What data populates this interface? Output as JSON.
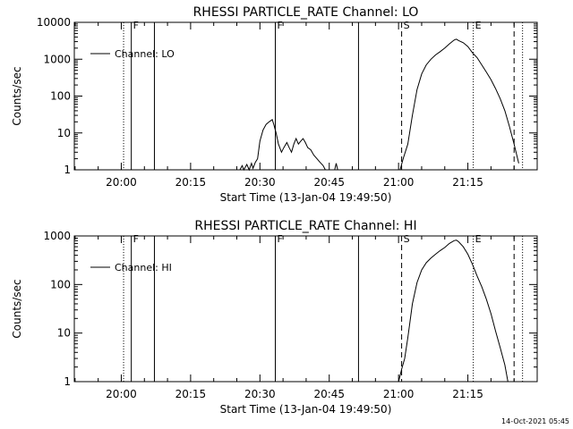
{
  "footer": {
    "timestamp": "14-Oct-2021 05:45"
  },
  "chart_data": [
    {
      "type": "line",
      "title": "RHESSI PARTICLE_RATE Channel: LO",
      "xlabel": "Start Time (13-Jan-04 19:49:50)",
      "ylabel": "Counts/sec",
      "xlim": [
        "19:49:50",
        "21:30:00"
      ],
      "ylim": [
        1,
        10000
      ],
      "yscale": "log",
      "yticks": [
        {
          "value": 1,
          "label": "1"
        },
        {
          "value": 10,
          "label": "10"
        },
        {
          "value": 100,
          "label": "100"
        },
        {
          "value": 1000,
          "label": "1000"
        },
        {
          "value": 10000,
          "label": "10000"
        }
      ],
      "xticks": [
        {
          "time": "20:00",
          "label": "20:00"
        },
        {
          "time": "20:15",
          "label": "20:15"
        },
        {
          "time": "20:30",
          "label": "20:30"
        },
        {
          "time": "20:45",
          "label": "20:45"
        },
        {
          "time": "21:00",
          "label": "21:00"
        },
        {
          "time": "21:15",
          "label": "21:15"
        }
      ],
      "legend": {
        "position": "top-left",
        "entries": [
          "Channel: LO"
        ]
      },
      "markers": [
        {
          "time": "20:00:30",
          "style": "dotted",
          "label": ""
        },
        {
          "time": "20:02:10",
          "style": "solid",
          "label": "F"
        },
        {
          "time": "20:07:10",
          "style": "solid",
          "label": ""
        },
        {
          "time": "20:33:20",
          "style": "solid",
          "label": "F"
        },
        {
          "time": "20:51:20",
          "style": "solid",
          "label": ""
        },
        {
          "time": "21:00:40",
          "style": "dashed",
          "label": "S"
        },
        {
          "time": "21:16:10",
          "style": "dotted",
          "label": "E"
        },
        {
          "time": "21:25:00",
          "style": "dashed",
          "label": ""
        },
        {
          "time": "21:26:50",
          "style": "dotted",
          "label": ""
        }
      ],
      "series": [
        {
          "name": "Channel: LO",
          "segments": [
            [
              [
                "20:25:40",
                1
              ],
              [
                "20:26:10",
                1.3
              ],
              [
                "20:26:30",
                1
              ],
              [
                "20:27:10",
                1.4
              ],
              [
                "20:27:40",
                1
              ],
              [
                "20:28:10",
                1.5
              ],
              [
                "20:28:30",
                1.1
              ],
              [
                "20:29:00",
                1.6
              ],
              [
                "20:29:30",
                2
              ],
              [
                "20:30:00",
                6
              ],
              [
                "20:30:40",
                12
              ],
              [
                "20:31:20",
                17
              ],
              [
                "20:32:00",
                20
              ],
              [
                "20:32:40",
                23
              ],
              [
                "20:33:00",
                17
              ],
              [
                "20:33:30",
                10
              ],
              [
                "20:34:00",
                5
              ],
              [
                "20:34:40",
                3
              ],
              [
                "20:35:10",
                4
              ],
              [
                "20:35:50",
                5.5
              ],
              [
                "20:36:20",
                4
              ],
              [
                "20:36:50",
                3
              ],
              [
                "20:37:20",
                5
              ],
              [
                "20:37:50",
                7
              ],
              [
                "20:38:20",
                5
              ],
              [
                "20:38:50",
                6
              ],
              [
                "20:39:20",
                7
              ],
              [
                "20:39:50",
                5.5
              ],
              [
                "20:40:20",
                4
              ],
              [
                "20:41:00",
                3.5
              ],
              [
                "20:41:40",
                2.5
              ],
              [
                "20:42:20",
                2
              ],
              [
                "20:43:00",
                1.6
              ],
              [
                "20:43:40",
                1.3
              ],
              [
                "20:44:10",
                1
              ]
            ],
            [
              [
                "20:46:10",
                1
              ],
              [
                "20:46:30",
                1.5
              ],
              [
                "20:46:50",
                1
              ]
            ],
            [
              [
                "21:00:20",
                1
              ],
              [
                "21:01:00",
                2
              ],
              [
                "21:02:00",
                5
              ],
              [
                "21:03:00",
                30
              ],
              [
                "21:04:00",
                150
              ],
              [
                "21:05:00",
                400
              ],
              [
                "21:06:00",
                700
              ],
              [
                "21:07:00",
                1000
              ],
              [
                "21:08:00",
                1300
              ],
              [
                "21:09:00",
                1600
              ],
              [
                "21:10:00",
                2000
              ],
              [
                "21:11:00",
                2600
              ],
              [
                "21:12:00",
                3300
              ],
              [
                "21:12:30",
                3500
              ],
              [
                "21:13:00",
                3200
              ],
              [
                "21:14:00",
                2800
              ],
              [
                "21:15:00",
                2200
              ],
              [
                "21:16:00",
                1500
              ],
              [
                "21:17:00",
                1100
              ],
              [
                "21:18:00",
                700
              ],
              [
                "21:19:00",
                450
              ],
              [
                "21:20:00",
                280
              ],
              [
                "21:21:00",
                160
              ],
              [
                "21:22:00",
                85
              ],
              [
                "21:23:00",
                40
              ],
              [
                "21:24:00",
                15
              ],
              [
                "21:25:00",
                5
              ],
              [
                "21:26:00",
                1.5
              ]
            ]
          ]
        }
      ]
    },
    {
      "type": "line",
      "title": "RHESSI PARTICLE_RATE Channel: HI",
      "xlabel": "Start Time (13-Jan-04 19:49:50)",
      "ylabel": "Counts/sec",
      "xlim": [
        "19:49:50",
        "21:30:00"
      ],
      "ylim": [
        1,
        1000
      ],
      "yscale": "log",
      "yticks": [
        {
          "value": 1,
          "label": "1"
        },
        {
          "value": 10,
          "label": "10"
        },
        {
          "value": 100,
          "label": "100"
        },
        {
          "value": 1000,
          "label": "1000"
        }
      ],
      "xticks": [
        {
          "time": "20:00",
          "label": "20:00"
        },
        {
          "time": "20:15",
          "label": "20:15"
        },
        {
          "time": "20:30",
          "label": "20:30"
        },
        {
          "time": "20:45",
          "label": "20:45"
        },
        {
          "time": "21:00",
          "label": "21:00"
        },
        {
          "time": "21:15",
          "label": "21:15"
        }
      ],
      "legend": {
        "position": "top-left",
        "entries": [
          "Channel: HI"
        ]
      },
      "markers": [
        {
          "time": "20:00:30",
          "style": "dotted",
          "label": ""
        },
        {
          "time": "20:02:10",
          "style": "solid",
          "label": "F"
        },
        {
          "time": "20:07:10",
          "style": "solid",
          "label": ""
        },
        {
          "time": "20:33:20",
          "style": "solid",
          "label": "F"
        },
        {
          "time": "20:51:20",
          "style": "solid",
          "label": ""
        },
        {
          "time": "21:00:40",
          "style": "dashed",
          "label": "S"
        },
        {
          "time": "21:16:10",
          "style": "dotted",
          "label": "E"
        },
        {
          "time": "21:25:00",
          "style": "dashed",
          "label": ""
        },
        {
          "time": "21:26:50",
          "style": "dotted",
          "label": ""
        }
      ],
      "series": [
        {
          "name": "Channel: HI",
          "segments": [
            [
              [
                "21:00:00",
                1
              ],
              [
                "21:00:40",
                1.8
              ],
              [
                "21:01:20",
                3
              ],
              [
                "21:02:00",
                8
              ],
              [
                "21:03:00",
                40
              ],
              [
                "21:04:00",
                110
              ],
              [
                "21:05:00",
                200
              ],
              [
                "21:06:00",
                280
              ],
              [
                "21:07:00",
                350
              ],
              [
                "21:08:00",
                420
              ],
              [
                "21:09:00",
                500
              ],
              [
                "21:10:00",
                580
              ],
              [
                "21:11:00",
                700
              ],
              [
                "21:12:00",
                800
              ],
              [
                "21:12:30",
                820
              ],
              [
                "21:13:00",
                760
              ],
              [
                "21:14:00",
                600
              ],
              [
                "21:15:00",
                420
              ],
              [
                "21:16:00",
                260
              ],
              [
                "21:17:00",
                150
              ],
              [
                "21:18:00",
                90
              ],
              [
                "21:19:00",
                50
              ],
              [
                "21:20:00",
                25
              ],
              [
                "21:21:00",
                11
              ],
              [
                "21:22:00",
                5
              ],
              [
                "21:23:00",
                2.2
              ],
              [
                "21:23:40",
                1
              ]
            ]
          ]
        }
      ]
    }
  ]
}
